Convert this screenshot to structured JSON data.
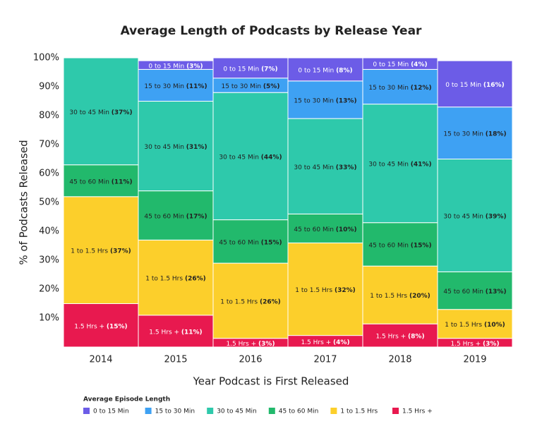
{
  "chart_data": {
    "type": "stacked_bar_100",
    "title": "Average Length of Podcasts by Release Year",
    "y_label": "% of Podcasts Released",
    "x_label": "Year Podcast is First Released",
    "legend_title": "Average Episode Length",
    "categories": [
      "2014",
      "2015",
      "2016",
      "2017",
      "2018",
      "2019"
    ],
    "ylim": [
      0,
      100
    ],
    "yticks": [
      {
        "value": 10,
        "label": "10%"
      },
      {
        "value": 20,
        "label": "20%"
      },
      {
        "value": 30,
        "label": "30%"
      },
      {
        "value": 40,
        "label": "40%"
      },
      {
        "value": 50,
        "label": "50%"
      },
      {
        "value": 60,
        "label": "60%"
      },
      {
        "value": 70,
        "label": "70%"
      },
      {
        "value": 80,
        "label": "80%"
      },
      {
        "value": 90,
        "label": "90%"
      },
      {
        "value": 100,
        "label": "100%"
      }
    ],
    "series": [
      {
        "name": "0 to 15 Min",
        "color": "#6c5ce7",
        "values": [
          null,
          3,
          7,
          8,
          4,
          16
        ],
        "value_labels": [
          null,
          "(3%)",
          "(7%)",
          "(8%)",
          "(4%)",
          "(16%)"
        ]
      },
      {
        "name": "15 to 30 Min",
        "color": "#3ea1f3",
        "values": [
          null,
          11,
          5,
          13,
          12,
          18
        ],
        "value_labels": [
          null,
          "(11%)",
          "(5%)",
          "(13%)",
          "(12%)",
          "(18%)"
        ]
      },
      {
        "name": "30 to 45 Min",
        "color": "#2ec9ab",
        "values": [
          37,
          31,
          44,
          33,
          41,
          39
        ],
        "value_labels": [
          "(37%)",
          "(31%)",
          "(44%)",
          "(33%)",
          "(41%)",
          "(39%)"
        ]
      },
      {
        "name": "45 to 60 Min",
        "color": "#22b96c",
        "values": [
          11,
          17,
          15,
          10,
          15,
          13
        ],
        "value_labels": [
          "(11%)",
          "(17%)",
          "(15%)",
          "(10%)",
          "(15%)",
          "(13%)"
        ]
      },
      {
        "name": "1 to 1.5 Hrs",
        "color": "#fccf2b",
        "values": [
          37,
          26,
          26,
          32,
          20,
          10
        ],
        "value_labels": [
          "(37%)",
          "(26%)",
          "(26%)",
          "(32%)",
          "(20%)",
          "(10%)"
        ]
      },
      {
        "name": "1.5 Hrs +",
        "color": "#e8194f",
        "values": [
          15,
          11,
          3,
          4,
          8,
          3
        ],
        "value_labels": [
          "(15%)",
          "(11%)",
          "(3%)",
          "(4%)",
          "(8%)",
          "(3%)"
        ]
      }
    ]
  }
}
